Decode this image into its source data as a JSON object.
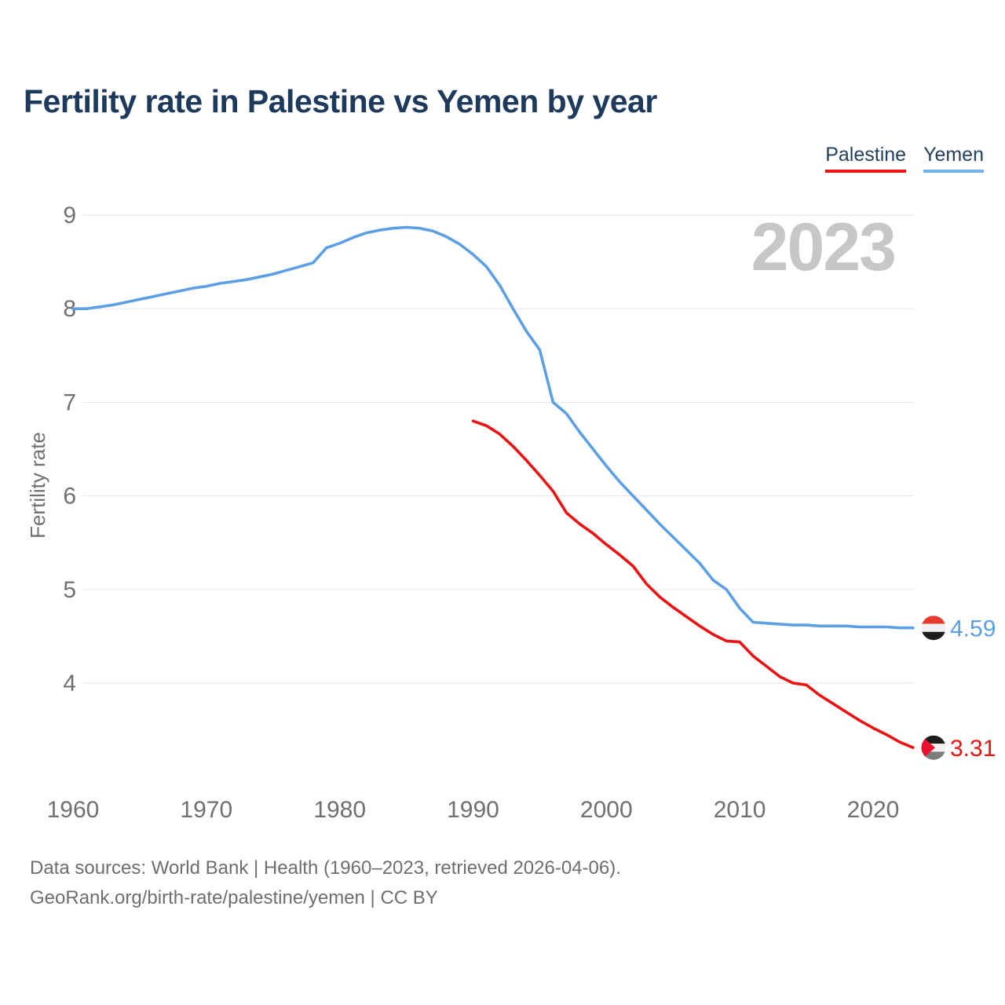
{
  "header": {
    "title": "Fertility rate in Palestine vs Yemen by year"
  },
  "legend": [
    {
      "label": "Palestine",
      "color": "#f01212"
    },
    {
      "label": "Yemen",
      "color": "#74b0ea"
    }
  ],
  "watermark": "2023",
  "chart_data": {
    "type": "line",
    "title": "Fertility rate in Palestine vs Yemen by year",
    "xlabel": "",
    "ylabel": "Fertility rate",
    "xlim": [
      1960,
      2023
    ],
    "ylim": [
      4,
      9
    ],
    "grid": "horizontal",
    "legend_position": "top-right",
    "x_ticks": [
      1960,
      1970,
      1980,
      1990,
      2000,
      2010,
      2020
    ],
    "y_ticks": [
      4,
      5,
      6,
      7,
      8,
      9
    ],
    "series": [
      {
        "name": "Yemen",
        "color": "#5d9fe4",
        "start_year": 1960,
        "end_label": "4.59",
        "flag": {
          "type": "yemen",
          "stripes": [
            "#e83a2e",
            "#f0f1f1",
            "#1c1c1c"
          ]
        },
        "values": [
          8.0,
          8.0,
          8.02,
          8.04,
          8.07,
          8.1,
          8.13,
          8.16,
          8.19,
          8.22,
          8.24,
          8.27,
          8.29,
          8.31,
          8.34,
          8.37,
          8.41,
          8.45,
          8.49,
          8.65,
          8.7,
          8.76,
          8.81,
          8.84,
          8.86,
          8.87,
          8.86,
          8.83,
          8.77,
          8.69,
          8.58,
          8.45,
          8.25,
          8.0,
          7.76,
          7.56,
          7.0,
          6.88,
          6.68,
          6.5,
          6.32,
          6.15,
          6.0,
          5.85,
          5.7,
          5.56,
          5.42,
          5.28,
          5.1,
          5.0,
          4.8,
          4.65,
          4.64,
          4.63,
          4.62,
          4.62,
          4.61,
          4.61,
          4.61,
          4.6,
          4.6,
          4.6,
          4.59,
          4.59
        ]
      },
      {
        "name": "Palestine",
        "color": "#ee1111",
        "start_year": 1990,
        "end_label": "3.31",
        "flag": {
          "type": "palestine",
          "stripes": [
            "#1c1c1c",
            "#f0f1f1",
            "#7d7d7d"
          ],
          "triangle": "#e8102e"
        },
        "values": [
          6.8,
          6.75,
          6.66,
          6.53,
          6.38,
          6.22,
          6.05,
          5.82,
          5.7,
          5.6,
          5.48,
          5.37,
          5.25,
          5.06,
          4.92,
          4.81,
          4.71,
          4.61,
          4.52,
          4.45,
          4.44,
          4.29,
          4.18,
          4.07,
          4.0,
          3.98,
          3.87,
          3.78,
          3.69,
          3.6,
          3.52,
          3.45,
          3.37,
          3.31
        ]
      }
    ]
  },
  "footer": {
    "line1": "Data sources: World Bank | Health (1960–2023, retrieved 2026-04-06).",
    "line2": "GeoRank.org/birth-rate/palestine/yemen | CC BY"
  }
}
